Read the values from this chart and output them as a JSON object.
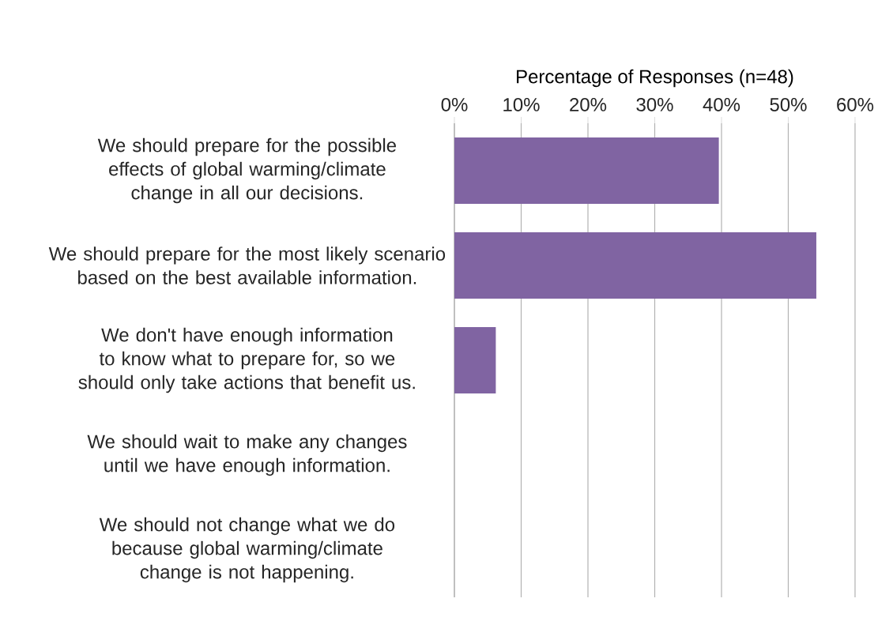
{
  "chart_data": {
    "type": "bar",
    "orientation": "horizontal",
    "xlabel": "Percentage of Responses (n=48)",
    "categories": [
      "We should prepare for the possible effects of global warming/climate change in all our decisions.",
      "We should prepare for the most likely scenario based on the best available information.",
      "We don't have enough information to know what to prepare for, so we should only take actions that benefit us.",
      "We should wait to make any changes until we have enough information.",
      "We should not change what we do because global warming/climate change is not happening."
    ],
    "values": [
      39.6,
      54.2,
      6.2,
      0,
      0
    ],
    "color": "#8064a2",
    "xlim": [
      0,
      60
    ],
    "xticks": [
      {
        "value": 0,
        "label": "0%"
      },
      {
        "value": 10,
        "label": "10%"
      },
      {
        "value": 20,
        "label": "20%"
      },
      {
        "value": 30,
        "label": "30%"
      },
      {
        "value": 40,
        "label": "40%"
      },
      {
        "value": 50,
        "label": "50%"
      },
      {
        "value": 60,
        "label": "60%"
      }
    ],
    "grid": "x"
  }
}
